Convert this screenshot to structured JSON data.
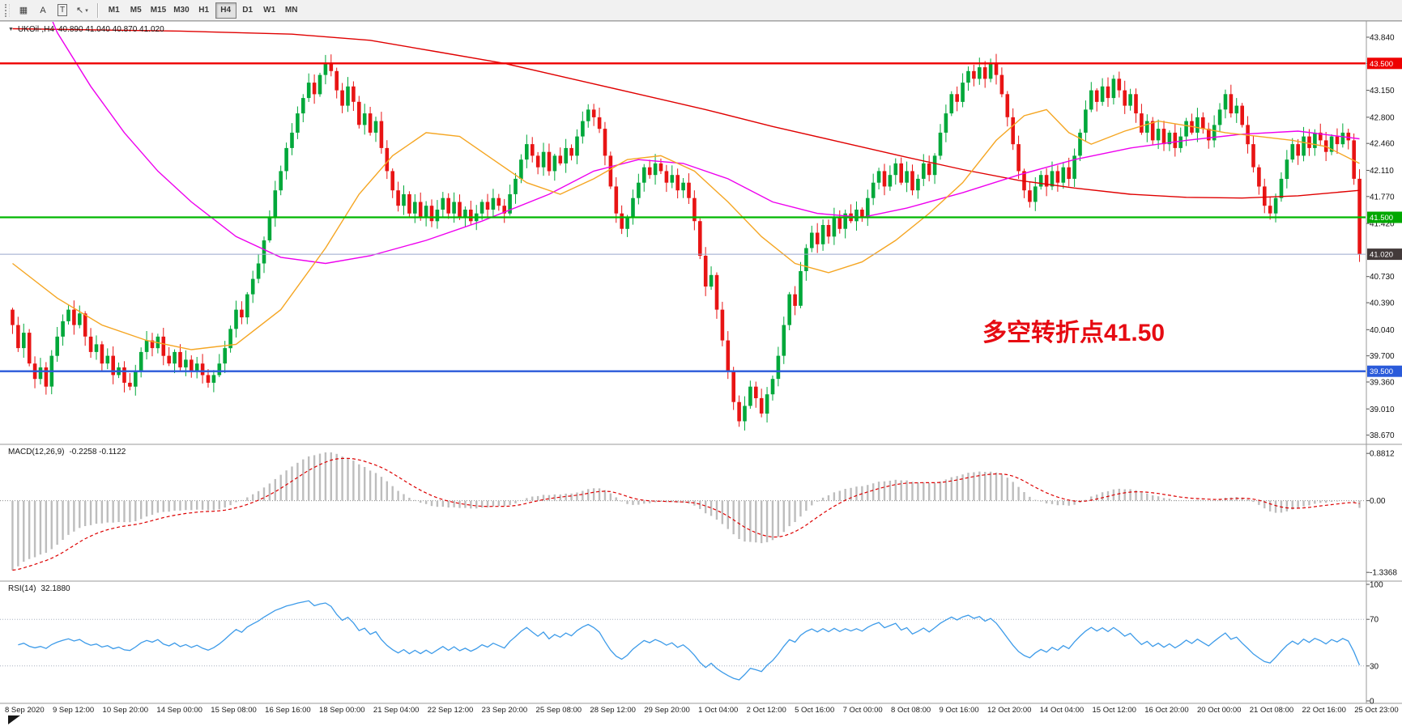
{
  "toolbar": {
    "tools": [
      {
        "name": "grid-icon",
        "glyph": "▦"
      },
      {
        "name": "annotation-a-button",
        "glyph": "A"
      },
      {
        "name": "text-tool-button",
        "glyph": "T",
        "boxed": true
      },
      {
        "name": "arrow-tool-button",
        "glyph": "↖",
        "caret": "▾"
      }
    ],
    "timeframes": [
      {
        "label": "M1"
      },
      {
        "label": "M5"
      },
      {
        "label": "M15"
      },
      {
        "label": "M30"
      },
      {
        "label": "H1"
      },
      {
        "label": "H4",
        "active": true
      },
      {
        "label": "D1"
      },
      {
        "label": "W1"
      },
      {
        "label": "MN"
      }
    ]
  },
  "chart": {
    "collapse_glyph": "▼",
    "title_symbol": "UKOil-,H4",
    "title_ohlc": "40.890 41.040 40.870 41.020",
    "annotation": {
      "text": "多空转折点41.50",
      "color": "#e60b12"
    }
  },
  "macd_panel": {
    "label": "MACD(12,26,9)",
    "values": "-0.2258 -0.1122"
  },
  "rsi_panel": {
    "label": "RSI(14)",
    "value": "32.1880"
  },
  "chart_data": {
    "type": "candlestick",
    "symbol": "UKOil-",
    "period": "H4",
    "price_range": [
      38.55,
      44.05
    ],
    "price_axis_labels": [
      "43.840",
      "43.500",
      "43.150",
      "42.800",
      "42.460",
      "42.110",
      "41.770",
      "41.420",
      "40.730",
      "40.390",
      "40.040",
      "39.700",
      "39.360",
      "39.010",
      "38.670"
    ],
    "colors": {
      "up": "#00a83a",
      "down": "#e81414"
    },
    "first_open": 40.3,
    "closes": [
      40.1,
      39.8,
      40.0,
      39.6,
      39.4,
      39.55,
      39.3,
      39.7,
      39.95,
      40.15,
      40.3,
      40.1,
      40.25,
      39.95,
      39.75,
      39.85,
      39.6,
      39.7,
      39.45,
      39.55,
      39.35,
      39.3,
      39.5,
      39.75,
      39.9,
      39.8,
      39.95,
      39.7,
      39.6,
      39.75,
      39.55,
      39.65,
      39.5,
      39.6,
      39.45,
      39.35,
      39.45,
      39.6,
      39.8,
      40.05,
      40.3,
      40.2,
      40.5,
      40.7,
      40.9,
      41.2,
      41.5,
      41.85,
      42.1,
      42.4,
      42.6,
      42.85,
      43.05,
      43.25,
      43.1,
      43.35,
      43.5,
      43.4,
      43.15,
      42.95,
      43.2,
      43.0,
      42.7,
      42.85,
      42.6,
      42.75,
      42.4,
      42.1,
      41.85,
      41.65,
      41.8,
      41.55,
      41.7,
      41.5,
      41.65,
      41.45,
      41.6,
      41.75,
      41.55,
      41.7,
      41.5,
      41.6,
      41.45,
      41.55,
      41.7,
      41.6,
      41.75,
      41.65,
      41.55,
      41.8,
      42.0,
      42.25,
      42.45,
      42.3,
      42.15,
      42.35,
      42.1,
      42.3,
      42.2,
      42.4,
      42.3,
      42.55,
      42.75,
      42.9,
      42.8,
      42.65,
      42.3,
      41.9,
      41.55,
      41.35,
      41.5,
      41.75,
      41.95,
      42.15,
      42.05,
      42.2,
      42.1,
      41.95,
      42.05,
      41.85,
      41.95,
      41.75,
      41.45,
      41.0,
      40.6,
      40.75,
      40.3,
      39.9,
      39.5,
      39.1,
      38.85,
      39.05,
      39.3,
      39.15,
      38.95,
      39.2,
      39.4,
      39.7,
      40.1,
      40.5,
      40.35,
      40.8,
      41.1,
      41.3,
      41.15,
      41.4,
      41.25,
      41.5,
      41.35,
      41.55,
      41.45,
      41.6,
      41.5,
      41.75,
      41.95,
      42.1,
      41.9,
      42.05,
      42.2,
      41.95,
      42.1,
      41.85,
      42.0,
      42.2,
      42.05,
      42.3,
      42.6,
      42.85,
      43.1,
      43.0,
      43.25,
      43.4,
      43.3,
      43.45,
      43.3,
      43.5,
      43.35,
      43.1,
      42.8,
      42.45,
      42.1,
      41.85,
      41.7,
      41.9,
      42.05,
      41.9,
      42.1,
      41.95,
      42.15,
      42.0,
      42.3,
      42.6,
      42.9,
      43.15,
      43.0,
      43.2,
      43.05,
      43.3,
      43.15,
      42.95,
      43.1,
      42.85,
      42.6,
      42.75,
      42.5,
      42.65,
      42.45,
      42.6,
      42.4,
      42.55,
      42.75,
      42.6,
      42.8,
      42.65,
      42.5,
      42.7,
      42.9,
      43.1,
      42.85,
      42.95,
      42.7,
      42.45,
      42.15,
      41.9,
      41.65,
      41.55,
      41.75,
      42.0,
      42.25,
      42.45,
      42.3,
      42.55,
      42.4,
      42.6,
      42.5,
      42.35,
      42.55,
      42.45,
      42.6,
      42.5,
      42.0,
      41.02
    ],
    "hlines": [
      {
        "price": 43.5,
        "color": "#ee0000",
        "width": 2.4,
        "label": "43.500",
        "label_bg": "#ee0000"
      },
      {
        "price": 41.5,
        "color": "#00b800",
        "width": 2.2,
        "label": "41.500",
        "label_bg": "#00a800"
      },
      {
        "price": 41.02,
        "color": "#9aa7cc",
        "width": 1,
        "label": "41.020",
        "label_bg": "#433a3a"
      },
      {
        "price": 39.5,
        "color": "#2a5ada",
        "width": 2.4,
        "label": "39.500",
        "label_bg": "#2a5ada"
      }
    ],
    "ma_lines": [
      {
        "name": "ma-long-red",
        "color": "#e00000",
        "points": [
          [
            0,
            43.95
          ],
          [
            30,
            43.92
          ],
          [
            50,
            43.88
          ],
          [
            64,
            43.8
          ],
          [
            76,
            43.65
          ],
          [
            88,
            43.5
          ],
          [
            100,
            43.3
          ],
          [
            112,
            43.1
          ],
          [
            124,
            42.9
          ],
          [
            136,
            42.68
          ],
          [
            148,
            42.48
          ],
          [
            160,
            42.28
          ],
          [
            170,
            42.12
          ],
          [
            180,
            41.98
          ],
          [
            190,
            41.88
          ],
          [
            200,
            41.8
          ],
          [
            210,
            41.76
          ],
          [
            220,
            41.75
          ],
          [
            230,
            41.78
          ],
          [
            241,
            41.85
          ]
        ]
      },
      {
        "name": "ma-mid-magenta",
        "color": "#ee00ee",
        "points": [
          [
            0,
            45.3
          ],
          [
            8,
            43.9
          ],
          [
            14,
            43.2
          ],
          [
            20,
            42.6
          ],
          [
            26,
            42.1
          ],
          [
            32,
            41.7
          ],
          [
            40,
            41.25
          ],
          [
            48,
            40.98
          ],
          [
            56,
            40.9
          ],
          [
            64,
            41.0
          ],
          [
            74,
            41.2
          ],
          [
            84,
            41.45
          ],
          [
            96,
            41.8
          ],
          [
            104,
            42.1
          ],
          [
            112,
            42.25
          ],
          [
            120,
            42.2
          ],
          [
            128,
            42.0
          ],
          [
            136,
            41.7
          ],
          [
            144,
            41.55
          ],
          [
            152,
            41.5
          ],
          [
            160,
            41.62
          ],
          [
            170,
            41.82
          ],
          [
            180,
            42.05
          ],
          [
            190,
            42.25
          ],
          [
            200,
            42.4
          ],
          [
            210,
            42.5
          ],
          [
            220,
            42.58
          ],
          [
            230,
            42.62
          ],
          [
            241,
            42.52
          ]
        ]
      },
      {
        "name": "ma-short-orange",
        "color": "#f5a623",
        "points": [
          [
            0,
            40.9
          ],
          [
            8,
            40.45
          ],
          [
            16,
            40.1
          ],
          [
            24,
            39.9
          ],
          [
            32,
            39.78
          ],
          [
            40,
            39.85
          ],
          [
            48,
            40.3
          ],
          [
            56,
            41.1
          ],
          [
            62,
            41.8
          ],
          [
            68,
            42.3
          ],
          [
            74,
            42.6
          ],
          [
            80,
            42.55
          ],
          [
            86,
            42.25
          ],
          [
            92,
            41.95
          ],
          [
            98,
            41.8
          ],
          [
            104,
            42.0
          ],
          [
            110,
            42.25
          ],
          [
            116,
            42.3
          ],
          [
            122,
            42.1
          ],
          [
            128,
            41.7
          ],
          [
            134,
            41.25
          ],
          [
            140,
            40.9
          ],
          [
            146,
            40.78
          ],
          [
            152,
            40.92
          ],
          [
            158,
            41.2
          ],
          [
            164,
            41.55
          ],
          [
            170,
            41.95
          ],
          [
            176,
            42.5
          ],
          [
            181,
            42.82
          ],
          [
            185,
            42.9
          ],
          [
            189,
            42.6
          ],
          [
            193,
            42.45
          ],
          [
            199,
            42.62
          ],
          [
            205,
            42.75
          ],
          [
            211,
            42.68
          ],
          [
            217,
            42.6
          ],
          [
            223,
            42.55
          ],
          [
            229,
            42.5
          ],
          [
            235,
            42.42
          ],
          [
            241,
            42.2
          ]
        ]
      }
    ],
    "macd": {
      "range": [
        -1.5,
        1.05
      ],
      "axis_labels": [
        "0.8812",
        "0.00",
        "-1.3368"
      ],
      "axis_values": [
        0.8812,
        0.0,
        -1.3368
      ],
      "seed_offset": 1.4,
      "histogram_color": "#bdbdbd",
      "signal_color": "#dd0000"
    },
    "rsi": {
      "axis_labels": [
        "100",
        "70",
        "30",
        "0"
      ],
      "axis_values": [
        100,
        70,
        30,
        0
      ],
      "levels": [
        30,
        70
      ],
      "line_color": "#3d9be9"
    },
    "time_axis": [
      "8 Sep 2020",
      "9 Sep 12:00",
      "10 Sep 20:00",
      "14 Sep 00:00",
      "15 Sep 08:00",
      "16 Sep 16:00",
      "18 Sep 00:00",
      "21 Sep 04:00",
      "22 Sep 12:00",
      "23 Sep 20:00",
      "25 Sep 08:00",
      "28 Sep 12:00",
      "29 Sep 20:00",
      "1 Oct 04:00",
      "2 Oct 12:00",
      "5 Oct 16:00",
      "7 Oct 00:00",
      "8 Oct 08:00",
      "9 Oct 16:00",
      "12 Oct 20:00",
      "14 Oct 04:00",
      "15 Oct 12:00",
      "16 Oct 20:00",
      "20 Oct 00:00",
      "21 Oct 08:00",
      "22 Oct 16:00",
      "25 Oct 23:00"
    ]
  }
}
